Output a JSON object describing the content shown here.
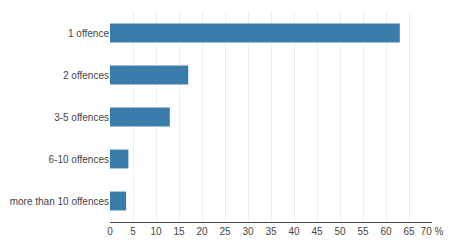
{
  "chart_data": {
    "type": "bar",
    "orientation": "horizontal",
    "categories": [
      "more than 10 offences",
      "6-10 offences",
      "3-5 offences",
      "2 offences",
      "1 offence"
    ],
    "values": [
      3.5,
      4.0,
      13.0,
      17.0,
      63.0
    ],
    "color": "#3a7dab",
    "xlim": [
      0,
      70
    ],
    "xticks": [
      0,
      5,
      10,
      15,
      20,
      25,
      30,
      35,
      40,
      45,
      50,
      55,
      60,
      65,
      {
        "value": 70,
        "label": "70 %"
      }
    ],
    "grid": true
  }
}
